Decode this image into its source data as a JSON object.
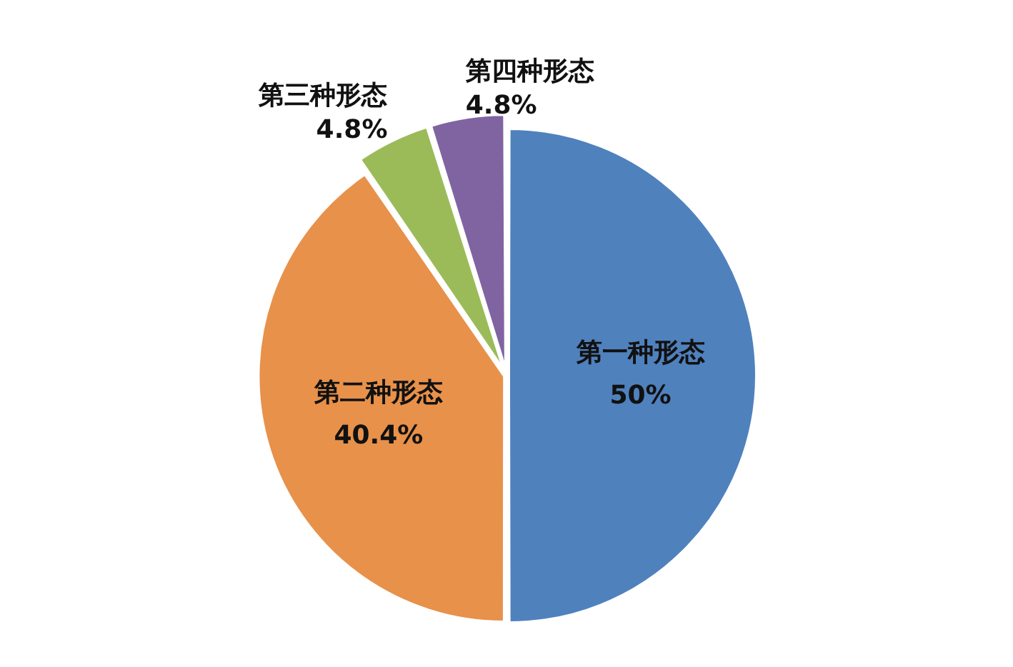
{
  "chart_data": {
    "type": "pie",
    "categories": [
      "第一种形态",
      "第二种形态",
      "第三种形态",
      "第四种形态"
    ],
    "values": [
      50,
      40.4,
      4.8,
      4.8
    ],
    "colors": [
      "#4f81bd",
      "#e8914a",
      "#9bbb59",
      "#8064a2"
    ],
    "value_labels": [
      "50%",
      "40.4%",
      "4.8%",
      "4.8%"
    ],
    "legend": false
  }
}
